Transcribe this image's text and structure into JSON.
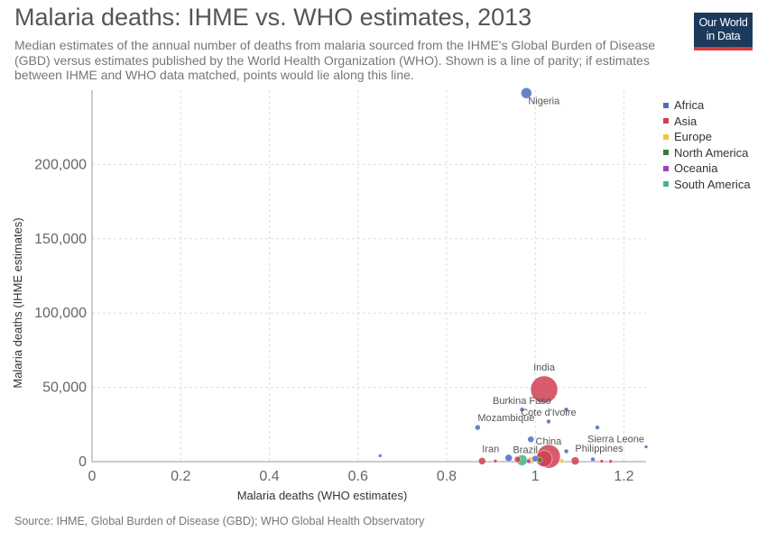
{
  "header": {
    "title": "Malaria deaths: IHME vs. WHO estimates, 2013",
    "subtitle": "Median estimates of the annual number of deaths from malaria sourced from the IHME's Global Burden of Disease (GBD) versus estimates published by the World Health Organization (WHO). Shown is a line of parity; if estimates between IHME and WHO data matched, points would lie along this line.",
    "logo_line1": "Our World",
    "logo_line2": "in Data"
  },
  "footer": {
    "source": "Source: IHME, Global Burden of Disease (GBD); WHO Global Health Observatory"
  },
  "legend": [
    {
      "label": "Africa",
      "color": "#4c6cc4"
    },
    {
      "label": "Asia",
      "color": "#d04052"
    },
    {
      "label": "Europe",
      "color": "#f7c33c"
    },
    {
      "label": "North America",
      "color": "#3b7a3b"
    },
    {
      "label": "Oceania",
      "color": "#a040c0"
    },
    {
      "label": "South America",
      "color": "#40b880"
    }
  ],
  "chart_data": {
    "type": "scatter",
    "title": "Malaria deaths: IHME vs. WHO estimates, 2013",
    "xlabel": "Malaria deaths (WHO estimates)",
    "ylabel": "Malaria deaths (IHME estimates)",
    "xlim": [
      0,
      1.25
    ],
    "ylim": [
      0,
      250000
    ],
    "x_ticks": [
      0,
      0.2,
      0.4,
      0.6,
      0.8,
      1.0,
      1.2
    ],
    "x_tick_labels": [
      "0",
      "0.2",
      "0.4",
      "0.6",
      "0.8",
      "1",
      "1.2"
    ],
    "y_ticks": [
      0,
      50000,
      100000,
      150000,
      200000
    ],
    "y_tick_labels": [
      "0",
      "50,000",
      "100,000",
      "150,000",
      "200,000"
    ],
    "grid": true,
    "legend_position": "top-right",
    "points": [
      {
        "label": "Nigeria",
        "x": 0.98,
        "y": 248000,
        "region": "Africa",
        "size": 6
      },
      {
        "label": "India",
        "x": 1.02,
        "y": 48600,
        "region": "Asia",
        "size": 15
      },
      {
        "label": "Burkina Faso",
        "x": 0.97,
        "y": 35000,
        "region": "Africa",
        "size": 2.5
      },
      {
        "label": "",
        "x": 1.07,
        "y": 35000,
        "region": "Africa",
        "size": 2.5
      },
      {
        "label": "Mozambique",
        "x": 0.87,
        "y": 23000,
        "region": "Africa",
        "size": 3
      },
      {
        "label": "Cote d'Ivoire",
        "x": 1.03,
        "y": 27000,
        "region": "Africa",
        "size": 2.5
      },
      {
        "label": "",
        "x": 1.14,
        "y": 23000,
        "region": "Africa",
        "size": 2.5
      },
      {
        "label": "",
        "x": 0.99,
        "y": 15000,
        "region": "Africa",
        "size": 3.5
      },
      {
        "label": "China",
        "x": 1.03,
        "y": 3500,
        "region": "Asia",
        "size": 13
      },
      {
        "label": "",
        "x": 1.02,
        "y": 2000,
        "region": "Asia",
        "size": 9
      },
      {
        "label": "Sierra Leone",
        "x": 1.25,
        "y": 10000,
        "region": "Africa",
        "size": 2
      },
      {
        "label": "",
        "x": 1.07,
        "y": 7000,
        "region": "Africa",
        "size": 2.5
      },
      {
        "label": "Philippines",
        "x": 1.09,
        "y": 500,
        "region": "Asia",
        "size": 4.5
      },
      {
        "label": "Iran",
        "x": 0.88,
        "y": 400,
        "region": "Asia",
        "size": 4
      },
      {
        "label": "Brazil",
        "x": 0.97,
        "y": 1000,
        "region": "South America",
        "size": 6
      },
      {
        "label": "",
        "x": 0.65,
        "y": 4000,
        "region": "Africa",
        "size": 2
      },
      {
        "label": "",
        "x": 0.94,
        "y": 2500,
        "region": "Africa",
        "size": 4
      },
      {
        "label": "",
        "x": 0.96,
        "y": 1500,
        "region": "Asia",
        "size": 3.5
      },
      {
        "label": "",
        "x": 0.99,
        "y": 800,
        "region": "Europe",
        "size": 4
      },
      {
        "label": "",
        "x": 1.0,
        "y": 2000,
        "region": "Africa",
        "size": 3.5
      },
      {
        "label": "",
        "x": 1.01,
        "y": 1200,
        "region": "North America",
        "size": 3
      },
      {
        "label": "",
        "x": 0.985,
        "y": 300,
        "region": "Oceania",
        "size": 2.5
      },
      {
        "label": "",
        "x": 0.91,
        "y": 400,
        "region": "Asia",
        "size": 2
      },
      {
        "label": "",
        "x": 1.06,
        "y": 600,
        "region": "Europe",
        "size": 2.5
      },
      {
        "label": "",
        "x": 1.13,
        "y": 1500,
        "region": "Africa",
        "size": 2.5
      },
      {
        "label": "",
        "x": 1.15,
        "y": 300,
        "region": "Asia",
        "size": 2
      },
      {
        "label": "",
        "x": 1.17,
        "y": 200,
        "region": "Asia",
        "size": 2
      }
    ]
  }
}
